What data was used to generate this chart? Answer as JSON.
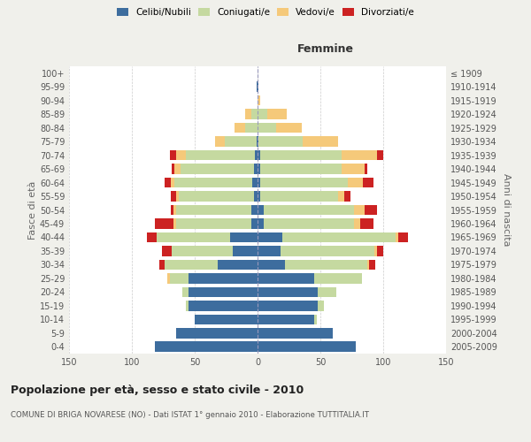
{
  "age_groups": [
    "0-4",
    "5-9",
    "10-14",
    "15-19",
    "20-24",
    "25-29",
    "30-34",
    "35-39",
    "40-44",
    "45-49",
    "50-54",
    "55-59",
    "60-64",
    "65-69",
    "70-74",
    "75-79",
    "80-84",
    "85-89",
    "90-94",
    "95-99",
    "100+"
  ],
  "birth_years": [
    "2005-2009",
    "2000-2004",
    "1995-1999",
    "1990-1994",
    "1985-1989",
    "1980-1984",
    "1975-1979",
    "1970-1974",
    "1965-1969",
    "1960-1964",
    "1955-1959",
    "1950-1954",
    "1945-1949",
    "1940-1944",
    "1935-1939",
    "1930-1934",
    "1925-1929",
    "1920-1924",
    "1915-1919",
    "1910-1914",
    "≤ 1909"
  ],
  "male_celibi": [
    82,
    65,
    50,
    55,
    55,
    55,
    32,
    20,
    22,
    5,
    5,
    3,
    4,
    3,
    2,
    1,
    0,
    0,
    0,
    1,
    0
  ],
  "male_coniugati": [
    0,
    0,
    0,
    2,
    5,
    15,
    42,
    48,
    58,
    60,
    60,
    60,
    62,
    58,
    55,
    25,
    10,
    5,
    0,
    0,
    0
  ],
  "male_vedovi": [
    0,
    0,
    0,
    0,
    0,
    2,
    0,
    0,
    0,
    2,
    2,
    2,
    3,
    5,
    8,
    8,
    8,
    5,
    0,
    0,
    0
  ],
  "male_divorziati": [
    0,
    0,
    0,
    0,
    0,
    0,
    4,
    8,
    8,
    15,
    2,
    4,
    5,
    2,
    5,
    0,
    0,
    0,
    0,
    0,
    0
  ],
  "female_nubili": [
    78,
    60,
    45,
    48,
    48,
    45,
    22,
    18,
    20,
    5,
    5,
    2,
    2,
    2,
    2,
    1,
    0,
    0,
    0,
    1,
    0
  ],
  "female_coniugate": [
    0,
    0,
    2,
    5,
    15,
    38,
    65,
    75,
    90,
    72,
    72,
    62,
    70,
    65,
    65,
    35,
    15,
    8,
    0,
    0,
    0
  ],
  "female_vedove": [
    0,
    0,
    0,
    0,
    0,
    0,
    2,
    2,
    2,
    5,
    8,
    5,
    12,
    18,
    28,
    28,
    20,
    15,
    2,
    0,
    0
  ],
  "female_divorziate": [
    0,
    0,
    0,
    0,
    0,
    0,
    5,
    5,
    8,
    10,
    10,
    5,
    8,
    2,
    5,
    0,
    0,
    0,
    0,
    0,
    0
  ],
  "colors": {
    "celibi": "#3d6d9e",
    "coniugati": "#c5d9a0",
    "vedovi": "#f5c97a",
    "divorziati": "#cc2222"
  },
  "xlim": 150,
  "title": "Popolazione per età, sesso e stato civile - 2010",
  "subtitle": "COMUNE DI BRIGA NOVARESE (NO) - Dati ISTAT 1° gennaio 2010 - Elaborazione TUTTITALIA.IT",
  "ylabel_left": "Fasce di età",
  "ylabel_right": "Anni di nascita",
  "xlabel_right": "Femmine",
  "bg_color": "#f0f0eb",
  "plot_bg": "#ffffff"
}
